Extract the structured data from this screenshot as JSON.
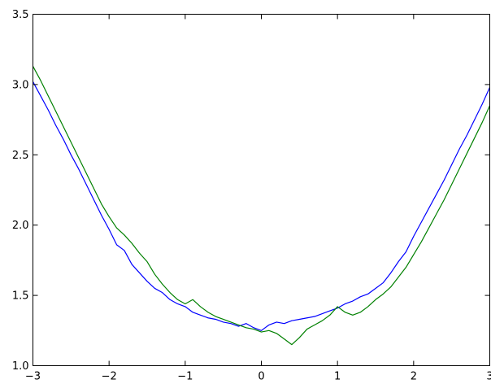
{
  "chart_data": {
    "type": "line",
    "title": "",
    "xlabel": "",
    "ylabel": "",
    "xlim": [
      -3,
      3
    ],
    "ylim": [
      1.0,
      3.5
    ],
    "grid": false,
    "legend": "none",
    "x_ticks": [
      -3,
      -2,
      -1,
      0,
      1,
      2,
      3
    ],
    "x_tick_labels": [
      "−3",
      "−2",
      "−1",
      "0",
      "1",
      "2",
      "3"
    ],
    "y_ticks": [
      1.0,
      1.5,
      2.0,
      2.5,
      3.0,
      3.5
    ],
    "y_tick_labels": [
      "1.0",
      "1.5",
      "2.0",
      "2.5",
      "3.0",
      "3.5"
    ],
    "series": [
      {
        "color": "#0000ff",
        "x": [
          -3.0,
          -2.9,
          -2.8,
          -2.7,
          -2.6,
          -2.5,
          -2.4,
          -2.3,
          -2.2,
          -2.1,
          -2.0,
          -1.9,
          -1.8,
          -1.7,
          -1.6,
          -1.5,
          -1.4,
          -1.3,
          -1.2,
          -1.1,
          -1.0,
          -0.9,
          -0.8,
          -0.7,
          -0.6,
          -0.5,
          -0.4,
          -0.3,
          -0.2,
          -0.1,
          0.0,
          0.1,
          0.2,
          0.3,
          0.4,
          0.5,
          0.6,
          0.7,
          0.8,
          0.9,
          1.0,
          1.1,
          1.2,
          1.3,
          1.4,
          1.5,
          1.6,
          1.7,
          1.8,
          1.9,
          2.0,
          2.1,
          2.2,
          2.3,
          2.4,
          2.5,
          2.6,
          2.7,
          2.8,
          2.9,
          3.0
        ],
        "y": [
          3.02,
          2.92,
          2.82,
          2.71,
          2.61,
          2.5,
          2.4,
          2.29,
          2.18,
          2.07,
          1.97,
          1.86,
          1.82,
          1.72,
          1.66,
          1.6,
          1.55,
          1.52,
          1.47,
          1.44,
          1.42,
          1.38,
          1.36,
          1.34,
          1.33,
          1.31,
          1.3,
          1.28,
          1.3,
          1.27,
          1.25,
          1.29,
          1.31,
          1.3,
          1.32,
          1.33,
          1.34,
          1.35,
          1.37,
          1.39,
          1.41,
          1.44,
          1.46,
          1.49,
          1.51,
          1.55,
          1.59,
          1.66,
          1.74,
          1.81,
          1.92,
          2.02,
          2.12,
          2.22,
          2.32,
          2.43,
          2.54,
          2.64,
          2.75,
          2.86,
          2.98
        ]
      },
      {
        "color": "#008000",
        "x": [
          -3.0,
          -2.9,
          -2.8,
          -2.7,
          -2.6,
          -2.5,
          -2.4,
          -2.3,
          -2.2,
          -2.1,
          -2.0,
          -1.9,
          -1.8,
          -1.7,
          -1.6,
          -1.5,
          -1.4,
          -1.3,
          -1.2,
          -1.1,
          -1.0,
          -0.9,
          -0.8,
          -0.7,
          -0.6,
          -0.5,
          -0.4,
          -0.3,
          -0.2,
          -0.1,
          0.0,
          0.1,
          0.2,
          0.3,
          0.4,
          0.5,
          0.6,
          0.7,
          0.8,
          0.9,
          1.0,
          1.1,
          1.2,
          1.3,
          1.4,
          1.5,
          1.6,
          1.7,
          1.8,
          1.9,
          2.0,
          2.1,
          2.2,
          2.3,
          2.4,
          2.5,
          2.6,
          2.7,
          2.8,
          2.9,
          3.0
        ],
        "y": [
          3.13,
          3.03,
          2.92,
          2.81,
          2.7,
          2.59,
          2.48,
          2.37,
          2.26,
          2.15,
          2.06,
          1.98,
          1.93,
          1.87,
          1.8,
          1.74,
          1.65,
          1.58,
          1.52,
          1.47,
          1.44,
          1.47,
          1.42,
          1.38,
          1.35,
          1.33,
          1.31,
          1.29,
          1.27,
          1.26,
          1.24,
          1.25,
          1.23,
          1.19,
          1.15,
          1.2,
          1.26,
          1.29,
          1.32,
          1.36,
          1.42,
          1.38,
          1.36,
          1.38,
          1.42,
          1.47,
          1.51,
          1.56,
          1.63,
          1.7,
          1.79,
          1.88,
          1.98,
          2.08,
          2.18,
          2.29,
          2.4,
          2.51,
          2.62,
          2.73,
          2.85
        ]
      }
    ]
  }
}
